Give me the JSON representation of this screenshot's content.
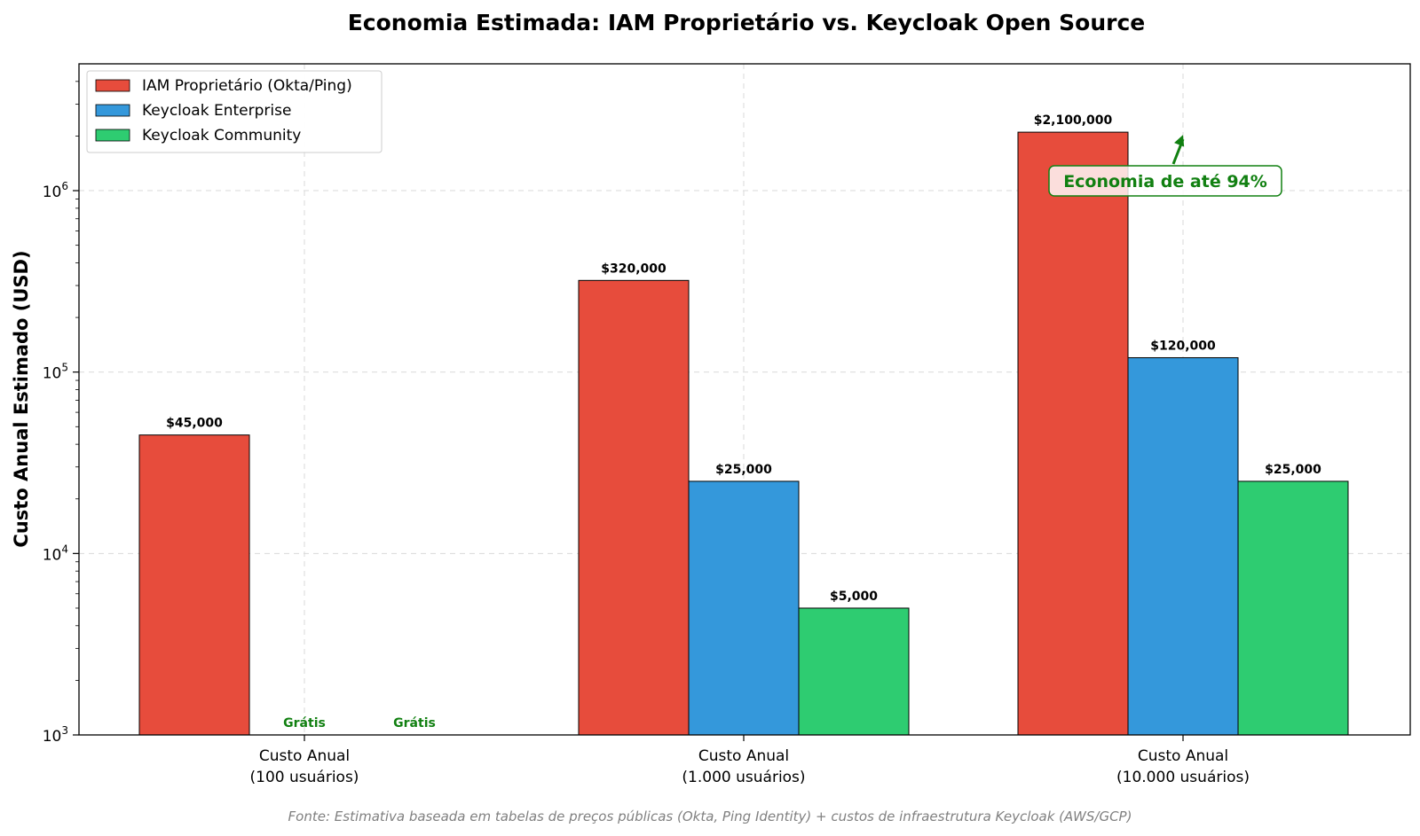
{
  "chart_data": {
    "type": "bar",
    "title": "Economia Estimada: IAM Proprietário vs. Keycloak Open Source",
    "ylabel": "Custo Anual Estimado (USD)",
    "xlabel": "",
    "yscale": "log",
    "ylim": [
      1000,
      5000000
    ],
    "ytick_base": "10",
    "yticks": [
      {
        "value": 1000,
        "exp": "3"
      },
      {
        "value": 10000,
        "exp": "4"
      },
      {
        "value": 100000,
        "exp": "5"
      },
      {
        "value": 1000000,
        "exp": "6"
      }
    ],
    "grid": true,
    "legend_position": "top-left",
    "categories": [
      {
        "line1": "Custo Anual",
        "line2": "(100 usuários)"
      },
      {
        "line1": "Custo Anual",
        "line2": "(1.000 usuários)"
      },
      {
        "line1": "Custo Anual",
        "line2": "(10.000 usuários)"
      }
    ],
    "series": [
      {
        "name": "IAM Proprietário (Okta/Ping)",
        "color": "#e74c3c",
        "values": [
          45000,
          320000,
          2100000
        ],
        "labels": [
          "$45,000",
          "$320,000",
          "$2,100,000"
        ]
      },
      {
        "name": "Keycloak Enterprise",
        "color": "#3498db",
        "values": [
          0,
          25000,
          120000
        ],
        "labels": [
          "Grátis",
          "$25,000",
          "$120,000"
        ]
      },
      {
        "name": "Keycloak Community",
        "color": "#2ecc71",
        "values": [
          0,
          5000,
          25000
        ],
        "labels": [
          "Grátis",
          "$5,000",
          "$25,000"
        ]
      }
    ],
    "annotation": {
      "text": "Economia de até 94%",
      "color": "#118011",
      "arrow_to_category": 2,
      "arrow_to_value": 2100000
    },
    "source_note": "Fonte: Estimativa baseada em tabelas de preços públicas (Okta, Ping Identity) + custos de infraestrutura Keycloak (AWS/GCP)"
  }
}
